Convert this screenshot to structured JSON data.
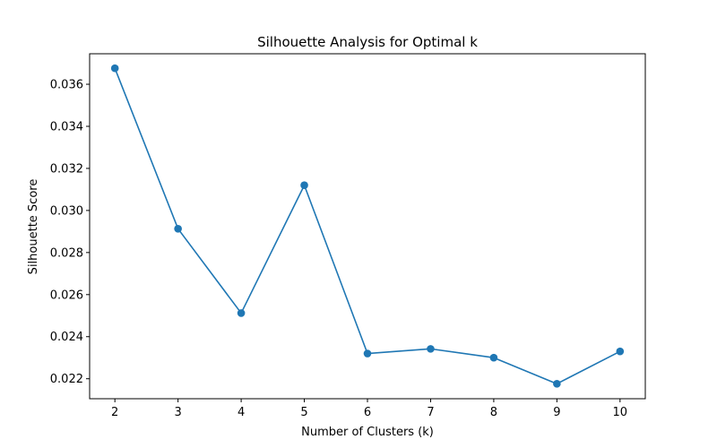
{
  "chart_data": {
    "type": "line",
    "title": "Silhouette Analysis for Optimal k",
    "xlabel": "Number of Clusters (k)",
    "ylabel": "Silhouette Score",
    "x": [
      2,
      3,
      4,
      5,
      6,
      7,
      8,
      9,
      10
    ],
    "series": [
      {
        "values": [
          0.03676,
          0.02913,
          0.02512,
          0.0312,
          0.0232,
          0.02342,
          0.023,
          0.02176,
          0.0233
        ],
        "color": "#1f77b4",
        "marker": "circle"
      }
    ],
    "xticks": [
      "2",
      "3",
      "4",
      "5",
      "6",
      "7",
      "8",
      "9",
      "10"
    ],
    "yticks": [
      "0.022",
      "0.024",
      "0.026",
      "0.028",
      "0.030",
      "0.032",
      "0.034",
      "0.036"
    ],
    "xlim": [
      1.6,
      10.4
    ],
    "ylim": [
      0.02105,
      0.03745
    ],
    "grid": false,
    "legend": "none"
  }
}
